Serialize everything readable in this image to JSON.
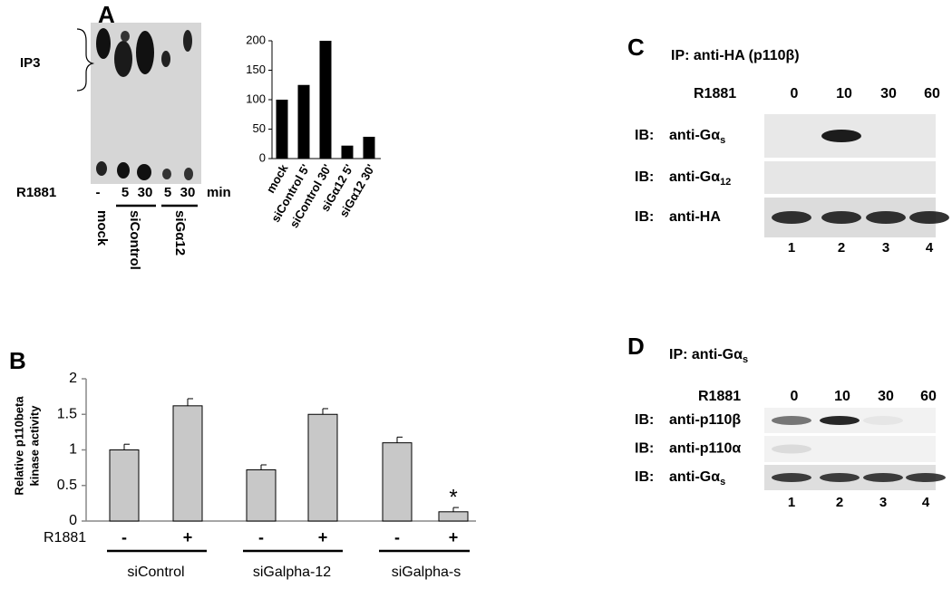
{
  "panel_labels": {
    "A": "A",
    "B": "B",
    "C": "C",
    "D": "D"
  },
  "tlc": {
    "ip3": "IP3",
    "treatment": "R1881",
    "lanes": [
      "-",
      "5",
      "30",
      "5",
      "30"
    ],
    "unit": "min",
    "groups": [
      "mock",
      "siControl",
      "siGα12"
    ]
  },
  "chart_data": [
    {
      "type": "bar",
      "categories": [
        "mock",
        "siControl 5'",
        "siControl 30'",
        "siGα12 5'",
        "siGα12 30'"
      ],
      "values": [
        100,
        125,
        200,
        22,
        37
      ],
      "color": "#000000",
      "ylim": [
        0,
        200
      ],
      "yticks": [
        0,
        50,
        100,
        150,
        200
      ]
    },
    {
      "type": "bar",
      "ylabel": [
        "Relative p110beta",
        "kinase activity"
      ],
      "row_label": "R1881",
      "categories": [
        "-",
        "+",
        "-",
        "+",
        "-",
        "+"
      ],
      "groups": [
        "siControl",
        "siGalpha-12",
        "siGalpha-s"
      ],
      "values": [
        1.0,
        1.62,
        0.72,
        1.5,
        1.1,
        0.13
      ],
      "errors": [
        0.08,
        0.1,
        0.07,
        0.08,
        0.08,
        0.06
      ],
      "color": "#c8c8c8",
      "ylim": [
        0,
        2
      ],
      "yticks": [
        0,
        0.5,
        1,
        1.5,
        2
      ],
      "annotations": [
        {
          "text": "*",
          "category": 5
        }
      ]
    }
  ],
  "blot_c": {
    "title": {
      "text": "IP: anti-HA (p110β)"
    },
    "treatment": "R1881",
    "lanes": [
      "0",
      "10",
      "30",
      "60"
    ],
    "rows": [
      {
        "prefix": "IB:",
        "text": "anti-Gα",
        "sub": "s"
      },
      {
        "prefix": "IB:",
        "text": "anti-Gα",
        "sub": "12"
      },
      {
        "prefix": "IB:",
        "text": "anti-HA"
      }
    ],
    "lane_numbers": [
      "1",
      "2",
      "3",
      "4"
    ]
  },
  "blot_d": {
    "title": {
      "text": "IP: anti-Gα",
      "sub": "s"
    },
    "treatment": "R1881",
    "lanes": [
      "0",
      "10",
      "30",
      "60"
    ],
    "rows": [
      {
        "prefix": "IB:",
        "text": "anti-p110β"
      },
      {
        "prefix": "IB:",
        "text": "anti-p110α"
      },
      {
        "prefix": "IB:",
        "text": "anti-Gα",
        "sub": "s"
      }
    ],
    "lane_numbers": [
      "1",
      "2",
      "3",
      "4"
    ]
  }
}
